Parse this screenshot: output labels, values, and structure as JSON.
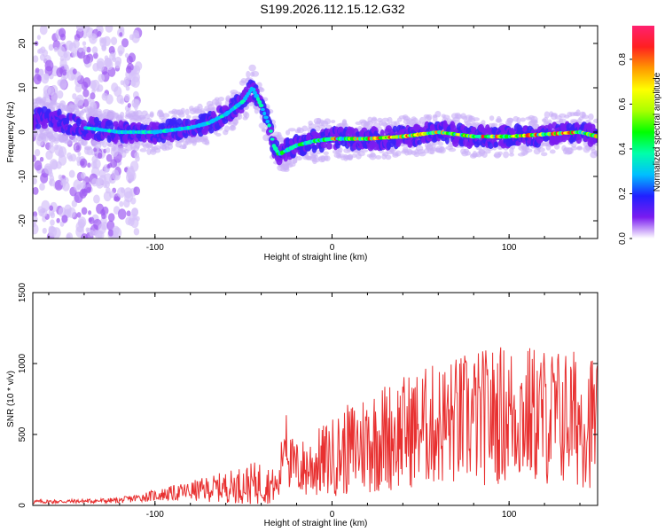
{
  "page_title": "S199.2026.112.15.12.G32",
  "chart_data": [
    {
      "type": "heatmap",
      "title": "S199.2026.112.15.12.G32",
      "xlabel": "Height of straight line (km)",
      "ylabel": "Frequency (Hz)",
      "xlim": [
        -169,
        150
      ],
      "ylim": [
        -24,
        24
      ],
      "xticks": [
        -100,
        0,
        100
      ],
      "yticks": [
        -20,
        -10,
        0,
        10,
        20
      ],
      "colorbar": {
        "label": "Normalized spectral amplitude",
        "range": [
          0.0,
          0.95
        ],
        "ticks": [
          0.0,
          0.2,
          0.4,
          0.6,
          0.8
        ],
        "tick_labels": [
          "0.0",
          "0.2",
          "0.4",
          "0.6",
          "0.8"
        ],
        "colors": [
          "#ffffff",
          "#7a1cf0",
          "#2020ff",
          "#00bfff",
          "#00ffaa",
          "#00ff00",
          "#aaff00",
          "#ffff00",
          "#ff9900",
          "#ff2020",
          "#ff2070"
        ]
      },
      "ridge": {
        "description_points_x": [
          -160,
          -140,
          -120,
          -100,
          -80,
          -70,
          -60,
          -50,
          -45,
          -40,
          -35,
          -33,
          -30,
          -25,
          -20,
          -10,
          0,
          10,
          20,
          40,
          60,
          80,
          100,
          120,
          140,
          150
        ],
        "description_points_y": [
          3,
          1,
          0,
          0,
          1,
          2,
          4,
          7,
          10,
          6,
          1,
          -3,
          -5,
          -4,
          -3,
          -2,
          -1.5,
          -1.5,
          -1.5,
          -1,
          0,
          -1,
          -1,
          -0.5,
          0,
          -1
        ]
      }
    },
    {
      "type": "line",
      "xlabel": "Height of straight line (km)",
      "ylabel": "SNR (10 * v/v)",
      "xlim": [
        -169,
        150
      ],
      "ylim": [
        0,
        1500
      ],
      "xticks": [
        -100,
        0,
        100
      ],
      "yticks": [
        0,
        500,
        1000,
        1500
      ],
      "color": "#e83030",
      "series_envelope": {
        "x": [
          -169,
          -140,
          -120,
          -100,
          -80,
          -60,
          -40,
          -30,
          -26,
          -24,
          -20,
          -15,
          0,
          20,
          50,
          75,
          100,
          130,
          150
        ],
        "mean": [
          25,
          30,
          35,
          70,
          100,
          130,
          160,
          130,
          600,
          300,
          260,
          260,
          340,
          450,
          550,
          600,
          650,
          620,
          600
        ],
        "amplitude": [
          15,
          15,
          20,
          40,
          70,
          110,
          160,
          100,
          320,
          200,
          200,
          220,
          280,
          380,
          420,
          480,
          500,
          500,
          480
        ]
      }
    }
  ]
}
